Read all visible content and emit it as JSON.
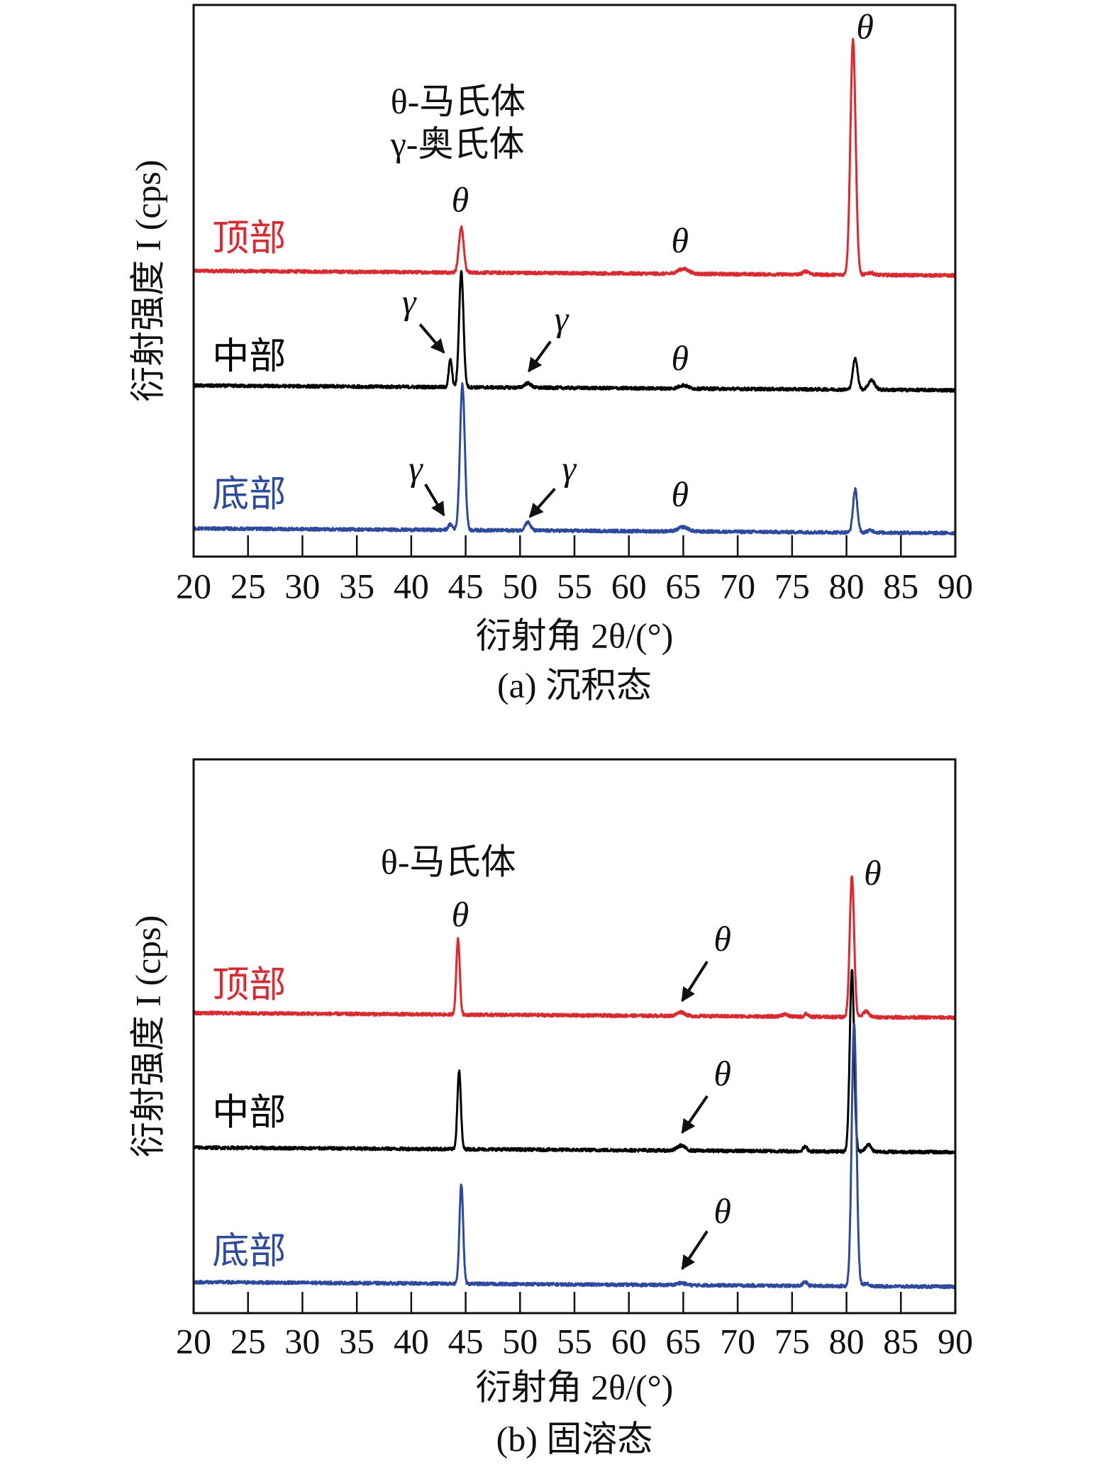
{
  "colors": {
    "top": "#e3262c",
    "middle": "#000000",
    "bottom": "#2c4aa3",
    "axis": "#111111"
  },
  "chart_data": [
    {
      "type": "line",
      "panel": "a",
      "caption": "(a) 沉积态",
      "xlabel": "衍射角 2θ/(°)",
      "ylabel": "衍射强度 I (cps)",
      "xlim": [
        20,
        90
      ],
      "ylim": [
        0,
        100
      ],
      "xticks": [
        20,
        25,
        30,
        35,
        40,
        45,
        50,
        55,
        60,
        65,
        70,
        75,
        80,
        85,
        90
      ],
      "legend_note": [
        "θ-马氏体",
        "γ-奥氏体"
      ],
      "legend_note_pos": {
        "x": 38.1,
        "y": [
          81.8,
          74.1
        ]
      },
      "series": [
        {
          "name": "顶部",
          "color_key": "top",
          "baseline": 51.8,
          "label_pos": {
            "x": 25.1,
            "y": 57
          },
          "peaks": [
            {
              "x": 44.6,
              "h": 8.2,
              "w": 0.22
            },
            {
              "x": 65.0,
              "h": 0.9,
              "w": 0.5
            },
            {
              "x": 76.3,
              "h": 0.6,
              "w": 0.3
            },
            {
              "x": 80.6,
              "h": 42.6,
              "w": 0.24
            },
            {
              "x": 82.2,
              "h": 0.4,
              "w": 0.3
            }
          ]
        },
        {
          "name": "中部",
          "color_key": "middle",
          "baseline": 31.0,
          "label_pos": {
            "x": 25.1,
            "y": 35.6
          },
          "peaks": [
            {
              "x": 43.6,
              "h": 5.0,
              "w": 0.15
            },
            {
              "x": 44.6,
              "h": 21.0,
              "w": 0.2
            },
            {
              "x": 50.7,
              "h": 0.8,
              "w": 0.3
            },
            {
              "x": 65.0,
              "h": 0.6,
              "w": 0.4
            },
            {
              "x": 80.8,
              "h": 5.6,
              "w": 0.22
            },
            {
              "x": 82.3,
              "h": 1.7,
              "w": 0.3
            }
          ]
        },
        {
          "name": "底部",
          "color_key": "bottom",
          "baseline": 5.1,
          "label_pos": {
            "x": 25.1,
            "y": 10.6
          },
          "peaks": [
            {
              "x": 43.6,
              "h": 1.0,
              "w": 0.2
            },
            {
              "x": 44.7,
              "h": 26.4,
              "w": 0.22
            },
            {
              "x": 50.7,
              "h": 1.5,
              "w": 0.25
            },
            {
              "x": 65.0,
              "h": 0.8,
              "w": 0.45
            },
            {
              "x": 80.8,
              "h": 7.8,
              "w": 0.2
            },
            {
              "x": 82.2,
              "h": 0.4,
              "w": 0.3
            }
          ]
        }
      ],
      "annotations": [
        {
          "text": "θ",
          "x": 44.5,
          "y": 64.0
        },
        {
          "text": "θ",
          "x": 64.7,
          "y": 56.6
        },
        {
          "text": "θ",
          "x": 81.7,
          "y": 95.4
        },
        {
          "text": "γ",
          "x": 39.8,
          "y": 45.5,
          "arrow": [
            40.8,
            42.1,
            43.0,
            37.0
          ]
        },
        {
          "text": "γ",
          "x": 53.8,
          "y": 42.4,
          "arrow": [
            52.8,
            39.0,
            50.8,
            33.6
          ]
        },
        {
          "text": "θ",
          "x": 64.7,
          "y": 35.3
        },
        {
          "text": "γ",
          "x": 40.4,
          "y": 15.3,
          "arrow": [
            41.3,
            13.1,
            43.0,
            7.5
          ]
        },
        {
          "text": "γ",
          "x": 54.5,
          "y": 15.3,
          "arrow": [
            53.2,
            12.3,
            50.9,
            7.2
          ]
        },
        {
          "text": "θ",
          "x": 64.7,
          "y": 10.6
        }
      ]
    },
    {
      "type": "line",
      "panel": "b",
      "caption": "(b) 固溶态",
      "xlabel": "衍射角 2θ/(°)",
      "ylabel": "衍射强度 I (cps)",
      "xlim": [
        20,
        90
      ],
      "ylim": [
        0,
        100
      ],
      "xticks": [
        20,
        25,
        30,
        35,
        40,
        45,
        50,
        55,
        60,
        65,
        70,
        75,
        80,
        85,
        90
      ],
      "legend_note": [
        "θ-马氏体"
      ],
      "legend_note_pos": {
        "x": 37.2,
        "y": [
          80.8
        ]
      },
      "series": [
        {
          "name": "顶部",
          "color_key": "top",
          "baseline": 54.2,
          "label_pos": {
            "x": 25.1,
            "y": 58.6
          },
          "peaks": [
            {
              "x": 44.3,
              "h": 13.7,
              "w": 0.16
            },
            {
              "x": 64.8,
              "h": 0.7,
              "w": 0.35
            },
            {
              "x": 74.3,
              "h": 0.4,
              "w": 0.3
            },
            {
              "x": 76.3,
              "h": 0.6,
              "w": 0.15
            },
            {
              "x": 80.5,
              "h": 25.6,
              "w": 0.2
            },
            {
              "x": 81.8,
              "h": 1.1,
              "w": 0.25
            }
          ]
        },
        {
          "name": "中部",
          "color_key": "middle",
          "baseline": 29.9,
          "label_pos": {
            "x": 25.1,
            "y": 35.5
          },
          "peaks": [
            {
              "x": 44.4,
              "h": 14.1,
              "w": 0.16
            },
            {
              "x": 64.8,
              "h": 0.9,
              "w": 0.35
            },
            {
              "x": 76.2,
              "h": 0.8,
              "w": 0.2
            },
            {
              "x": 80.5,
              "h": 32.9,
              "w": 0.2
            },
            {
              "x": 82.0,
              "h": 1.3,
              "w": 0.25
            }
          ]
        },
        {
          "name": "底部",
          "color_key": "bottom",
          "baseline": 5.6,
          "label_pos": {
            "x": 25.1,
            "y": 10.5
          },
          "peaks": [
            {
              "x": 44.6,
              "h": 18.0,
              "w": 0.17
            },
            {
              "x": 64.8,
              "h": 0.4,
              "w": 0.35
            },
            {
              "x": 76.2,
              "h": 0.7,
              "w": 0.2
            },
            {
              "x": 80.7,
              "h": 47.4,
              "w": 0.22
            },
            {
              "x": 81.8,
              "h": 0.5,
              "w": 0.3
            }
          ]
        }
      ],
      "annotations": [
        {
          "text": "θ",
          "x": 44.5,
          "y": 71.3
        },
        {
          "text": "θ",
          "x": 82.4,
          "y": 78.8
        },
        {
          "text": "θ",
          "x": 68.6,
          "y": 66.9,
          "arrow": [
            67.2,
            63.5,
            64.9,
            56.4
          ]
        },
        {
          "text": "θ",
          "x": 68.6,
          "y": 42.6,
          "arrow": [
            67.2,
            39.2,
            64.9,
            32.6
          ]
        },
        {
          "text": "θ",
          "x": 68.6,
          "y": 17.7,
          "arrow": [
            67.2,
            14.8,
            64.9,
            8.0
          ]
        }
      ]
    }
  ]
}
